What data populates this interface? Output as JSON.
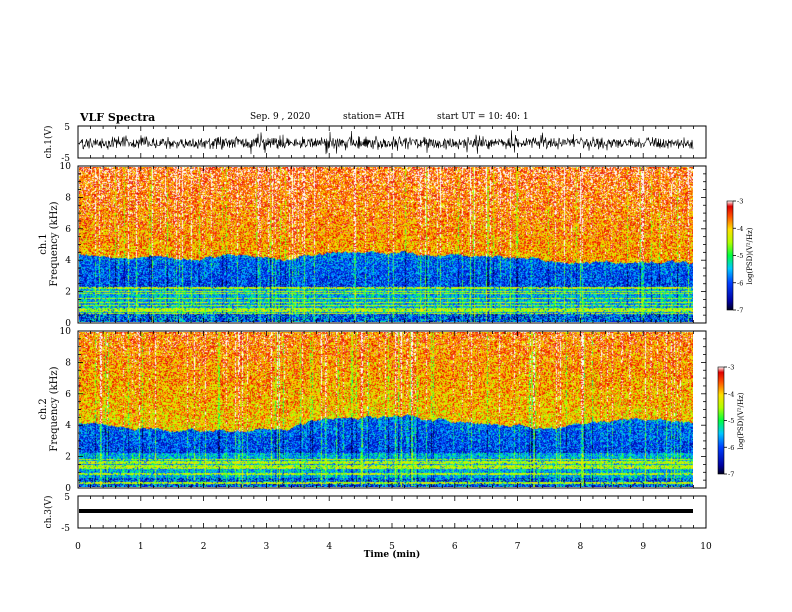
{
  "header": {
    "title": "VLF Spectra",
    "date": "Sep. 9 , 2020",
    "station": "station= ATH",
    "start": "start UT = 10: 40: 1"
  },
  "chart_data": [
    {
      "type": "line",
      "panel": "ch1-waveform",
      "ylabel": "ch.1(V)",
      "ylim": [
        -5,
        5
      ],
      "yticks": [
        "5",
        "-5"
      ],
      "xlim": [
        0,
        10
      ]
    },
    {
      "type": "heatmap",
      "panel": "ch1-spectrogram",
      "ylabel_line1": "ch.1",
      "ylabel_line2": "Frequency (kHz)",
      "ylim": [
        0,
        10
      ],
      "yticks": [
        "0",
        "2",
        "4",
        "6",
        "8",
        "10"
      ],
      "xlim": [
        0,
        9.8
      ],
      "colorbar": {
        "label": "log(PSD)(V²/Hz)",
        "range": [
          -7,
          -3
        ],
        "ticks": [
          "-3",
          "-4",
          "-5",
          "-6",
          "-7"
        ]
      }
    },
    {
      "type": "heatmap",
      "panel": "ch2-spectrogram",
      "ylabel_line1": "ch.2",
      "ylabel_line2": "Frequency (kHz)",
      "ylim": [
        0,
        10
      ],
      "yticks": [
        "0",
        "2",
        "4",
        "6",
        "8",
        "10"
      ],
      "xlim": [
        0,
        9.8
      ],
      "colorbar": {
        "label": "log(PSD)(V²/Hz)",
        "range": [
          -7,
          -3
        ],
        "ticks": [
          "-3",
          "-4",
          "-5",
          "-6",
          "-7"
        ]
      }
    },
    {
      "type": "line",
      "panel": "ch3-waveform",
      "ylabel": "ch.3(V)",
      "ylim": [
        -5,
        5
      ],
      "yticks": [
        "5",
        "-5"
      ],
      "xlim": [
        0,
        10
      ],
      "xlabel": "Time (min)",
      "xticks": [
        "0",
        "1",
        "2",
        "3",
        "4",
        "5",
        "6",
        "7",
        "8",
        "9",
        "10"
      ]
    }
  ]
}
